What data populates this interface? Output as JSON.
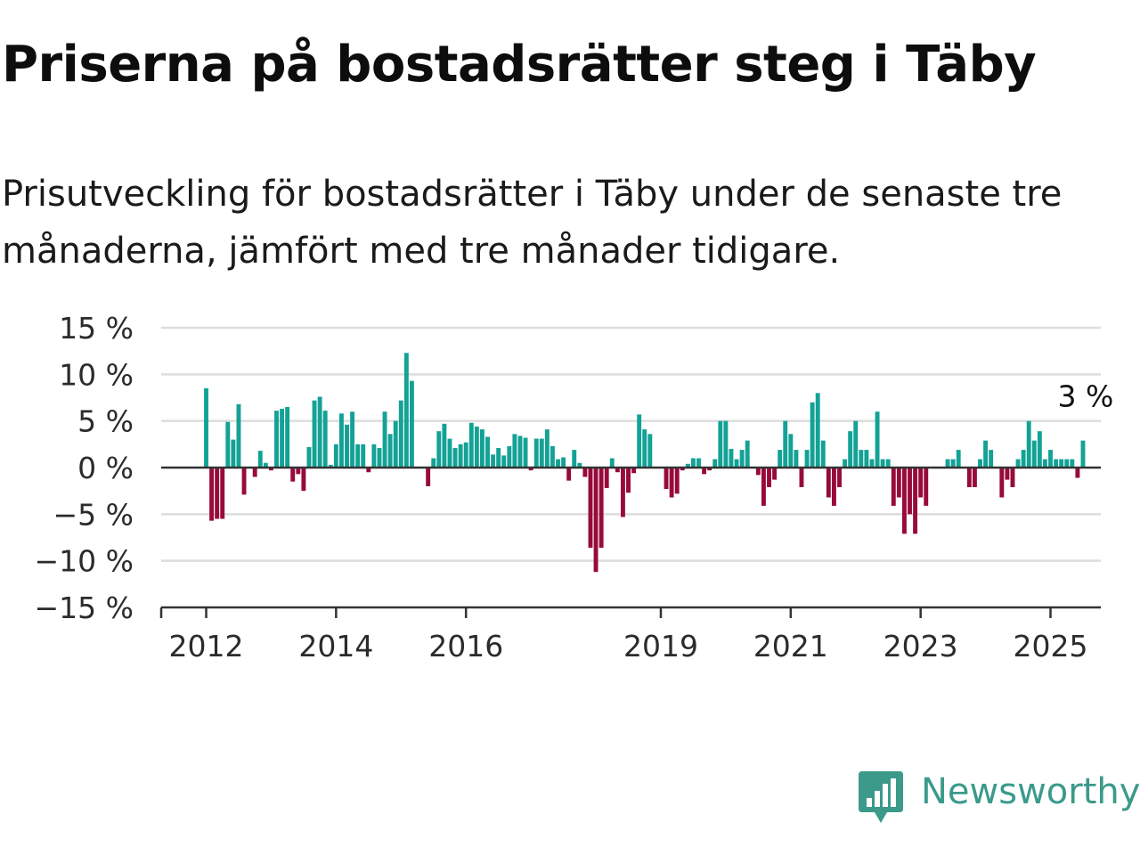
{
  "header": {
    "title": "Priserna på bostadsrätter steg i Täby",
    "subtitle": "Prisutveckling för bostadsrätter i Täby under de senaste tre månaderna, jämfört med tre månader tidigare."
  },
  "brand": {
    "name": "Newsworthy",
    "icon": "bar-chart-speech-bubble-icon",
    "color": "#3b9a8a"
  },
  "colors": {
    "positive": "#13a295",
    "negative": "#980a3c",
    "grid": "#dddddd",
    "axis": "#333333"
  },
  "chart_data": {
    "type": "bar",
    "title": "Priserna på bostadsrätter steg i Täby",
    "xlabel": "",
    "ylabel": "",
    "ylim": [
      -15,
      15
    ],
    "y_ticks": [
      15,
      10,
      5,
      0,
      -5,
      -10,
      -15
    ],
    "y_tick_labels": [
      "15 %",
      "10 %",
      "5 %",
      "0 %",
      "−5 %",
      "−10 %",
      "−15 %"
    ],
    "x_tick_labels": [
      "2012",
      "2014",
      "2016",
      "2019",
      "2021",
      "2023",
      "2025"
    ],
    "x_tick_months": [
      0,
      24,
      48,
      84,
      108,
      132,
      156
    ],
    "start": "2012-01",
    "frequency": "monthly",
    "annotation": {
      "text": "3 %",
      "value": 3,
      "target": "last"
    },
    "grid": true,
    "legend": "none",
    "values": [
      8.5,
      -5.7,
      -5.5,
      -5.5,
      4.9,
      3.0,
      6.8,
      -2.9,
      0,
      -1.0,
      1.8,
      0.5,
      -0.3,
      6.1,
      6.3,
      6.5,
      -1.5,
      -0.7,
      -2.5,
      2.2,
      7.2,
      7.6,
      6.1,
      0.3,
      2.5,
      5.8,
      4.6,
      6.0,
      2.5,
      2.5,
      -0.5,
      2.5,
      2.1,
      6.0,
      3.6,
      5.0,
      7.2,
      12.3,
      9.3,
      0,
      0,
      -2.0,
      1.0,
      3.9,
      4.7,
      3.1,
      2.1,
      2.5,
      2.7,
      4.8,
      4.4,
      4.1,
      3.3,
      1.4,
      2.1,
      1.3,
      2.3,
      3.6,
      3.4,
      3.2,
      -0.3,
      3.1,
      3.1,
      4.1,
      2.3,
      0.9,
      1.1,
      -1.4,
      1.9,
      0.5,
      -1.0,
      -8.6,
      -11.2,
      -8.6,
      -2.2,
      1.0,
      -0.5,
      -5.3,
      -2.7,
      -0.6,
      5.7,
      4.1,
      3.6,
      0,
      0,
      -2.3,
      -3.2,
      -2.8,
      -0.3,
      0.4,
      1.0,
      1.0,
      -0.7,
      -0.3,
      0.9,
      5.0,
      5.0,
      2.0,
      0.9,
      1.9,
      2.9,
      0,
      -0.8,
      -4.1,
      -2.1,
      -1.3,
      1.9,
      5.0,
      3.6,
      1.9,
      -2.1,
      1.9,
      7.0,
      8.0,
      2.9,
      -3.2,
      -4.1,
      -2.1,
      0.9,
      3.9,
      5.0,
      1.9,
      1.9,
      0.9,
      6.0,
      0.9,
      0.9,
      -4.1,
      -3.2,
      -7.1,
      -5.0,
      -7.1,
      -3.2,
      -4.1,
      0,
      0,
      0,
      0.9,
      0.9,
      1.9,
      0,
      -2.1,
      -2.1,
      0.9,
      2.9,
      1.9,
      0,
      -3.2,
      -1.3,
      -2.1,
      0.9,
      1.9,
      5.0,
      2.9,
      3.9,
      0.9,
      1.9,
      0.9,
      0.9,
      0.9,
      0.9,
      -1.1,
      2.9
    ]
  }
}
